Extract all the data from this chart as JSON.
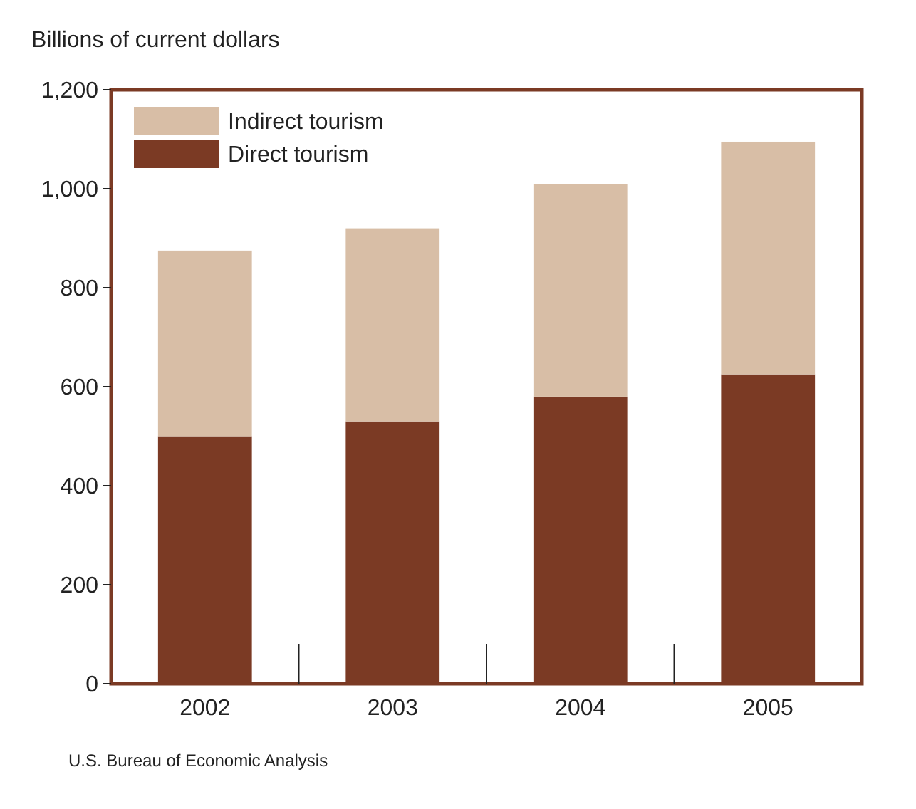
{
  "chart_data": {
    "type": "bar",
    "stacked": true,
    "ylabel": "Billions of current dollars",
    "categories": [
      "2002",
      "2003",
      "2004",
      "2005"
    ],
    "series": [
      {
        "name": "Direct tourism",
        "color": "#7b3a24",
        "values": [
          500,
          530,
          580,
          625
        ]
      },
      {
        "name": "Indirect tourism",
        "color": "#d8bea6",
        "values": [
          375,
          390,
          430,
          470
        ]
      }
    ],
    "ylim": [
      0,
      1200
    ],
    "yticks": [
      0,
      200,
      400,
      600,
      800,
      {
        "value": 1000,
        "label": "1,000"
      },
      {
        "value": 1200,
        "label": "1,200"
      }
    ],
    "grid": false,
    "legend": "top left",
    "annotations": [
      "U.S. Bureau of Economic Analysis"
    ]
  }
}
